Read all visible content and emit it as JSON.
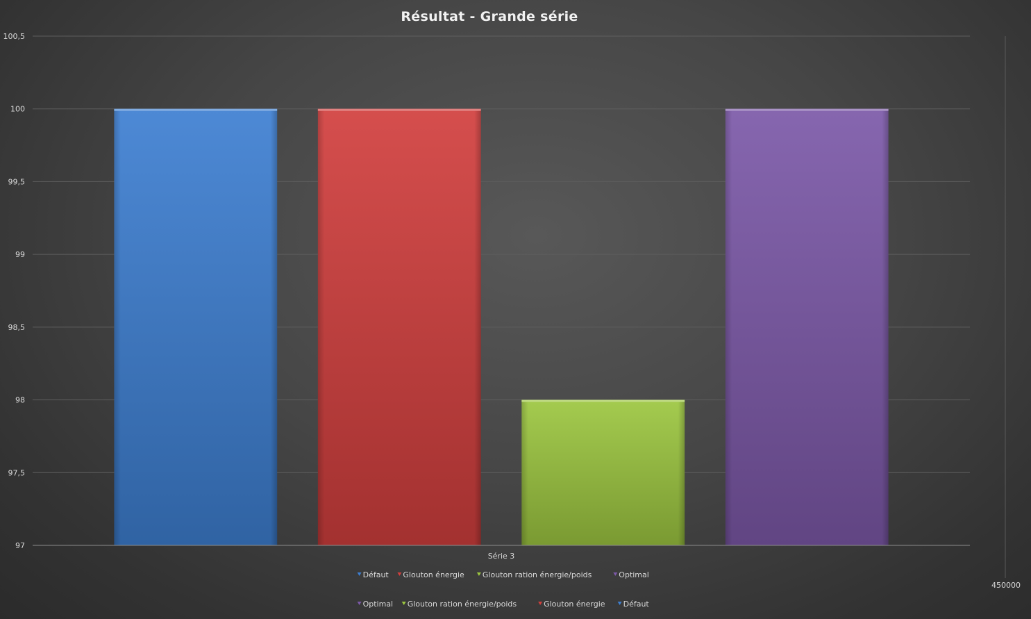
{
  "chart_data": {
    "type": "bar",
    "title": "Résultat  - Grande  série",
    "categories": [
      "Série 3"
    ],
    "series": [
      {
        "name": "Défaut",
        "values": [
          100
        ],
        "color": "#3d7fd1"
      },
      {
        "name": "Glouton énergie",
        "values": [
          100
        ],
        "color": "#d13f3d"
      },
      {
        "name": "Glouton ration énergie/poids",
        "values": [
          98
        ],
        "color": "#9cc640"
      },
      {
        "name": "Optimal",
        "values": [
          100
        ],
        "color": "#7c59a8"
      }
    ],
    "ylim": [
      97,
      100.5
    ],
    "yticks": [
      {
        "value": 97,
        "label": "97"
      },
      {
        "value": 97.5,
        "label": "97,5"
      },
      {
        "value": 98,
        "label": "98"
      },
      {
        "value": 98.5,
        "label": "98,5"
      },
      {
        "value": 99,
        "label": "99"
      },
      {
        "value": 99.5,
        "label": "99,5"
      },
      {
        "value": 100,
        "label": "100"
      },
      {
        "value": 100.5,
        "label": "100,5"
      }
    ],
    "grid": true,
    "legend_position": "bottom",
    "legend_primary": [
      "Défaut",
      "Glouton énergie",
      "Glouton ration énergie/poids",
      "Optimal"
    ],
    "legend_secondary": [
      "Optimal",
      "Glouton ration énergie/poids",
      "Glouton énergie",
      "Défaut"
    ],
    "secondary_axis_label": "450000"
  }
}
